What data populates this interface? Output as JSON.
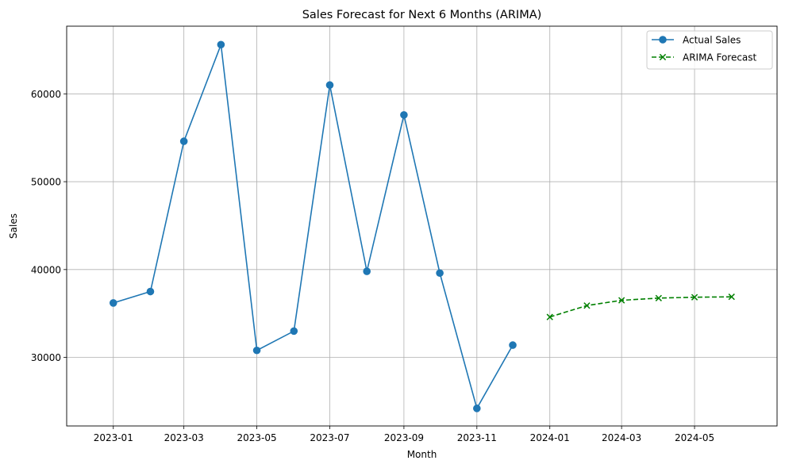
{
  "chart_data": {
    "type": "line",
    "title": "Sales Forecast for Next 6 Months (ARIMA)",
    "xlabel": "Month",
    "ylabel": "Sales",
    "xlim": [
      "2022-11-23",
      "2024-07-09"
    ],
    "ylim": [
      22200,
      67700
    ],
    "x_ticks": [
      "2023-01",
      "2023-03",
      "2023-05",
      "2023-07",
      "2023-09",
      "2023-11",
      "2024-01",
      "2024-03",
      "2024-05"
    ],
    "y_ticks": [
      30000,
      40000,
      50000,
      60000
    ],
    "grid": true,
    "legend_position": "top-right",
    "series": [
      {
        "name": "Actual Sales",
        "color": "#1f77b4",
        "line_style": "solid",
        "marker": "circle",
        "x": [
          "2023-01-01",
          "2023-02-01",
          "2023-03-01",
          "2023-04-01",
          "2023-05-01",
          "2023-06-01",
          "2023-07-01",
          "2023-08-01",
          "2023-09-01",
          "2023-10-01",
          "2023-11-01",
          "2023-12-01"
        ],
        "values": [
          36200,
          37500,
          54600,
          65600,
          30800,
          33000,
          61000,
          39800,
          57600,
          39600,
          24200,
          31400
        ]
      },
      {
        "name": "ARIMA Forecast",
        "color": "#008000",
        "line_style": "dashed",
        "marker": "x",
        "x": [
          "2024-01-01",
          "2024-02-01",
          "2024-03-01",
          "2024-04-01",
          "2024-05-01",
          "2024-06-01"
        ],
        "values": [
          34600,
          35900,
          36500,
          36750,
          36850,
          36900
        ]
      }
    ]
  }
}
